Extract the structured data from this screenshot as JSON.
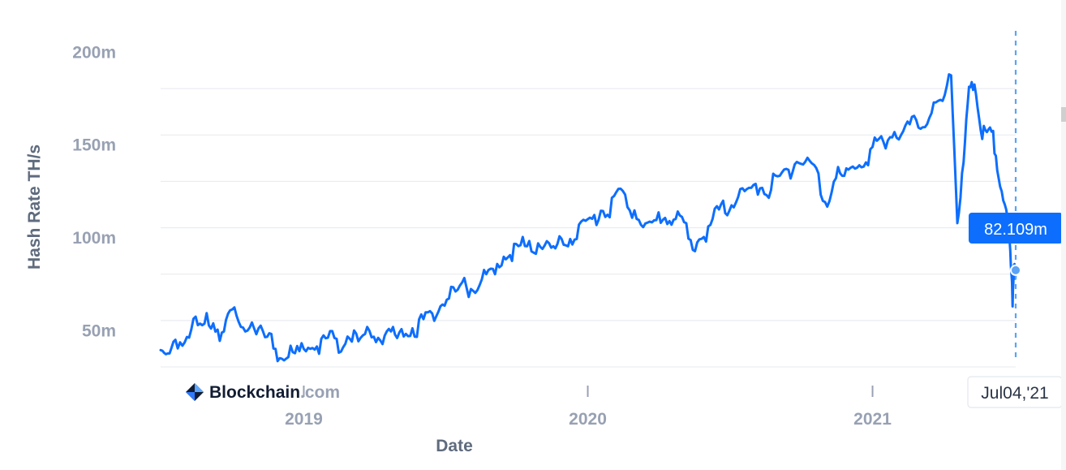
{
  "chart_data": {
    "type": "line",
    "xlabel": "Date",
    "ylabel": "Hash Rate TH/s",
    "yticks": [
      {
        "value": 200,
        "label": "200m"
      },
      {
        "value": 150,
        "label": "150m"
      },
      {
        "value": 100,
        "label": "100m"
      },
      {
        "value": 50,
        "label": "50m"
      }
    ],
    "xticks": [
      {
        "date": "2019-01-01",
        "label": "2019"
      },
      {
        "date": "2020-01-01",
        "label": "2020"
      },
      {
        "date": "2021-01-01",
        "label": "2021"
      }
    ],
    "ylim": [
      30,
      205
    ],
    "xlim": [
      "2018-07-01",
      "2021-07-04"
    ],
    "series": [
      {
        "color": "#0d6efd",
        "points": [
          [
            "2018-07-01",
            40
          ],
          [
            "2018-07-10",
            34
          ],
          [
            "2018-07-20",
            41
          ],
          [
            "2018-08-01",
            48
          ],
          [
            "2018-08-15",
            52
          ],
          [
            "2018-09-01",
            55
          ],
          [
            "2018-09-15",
            50
          ],
          [
            "2018-10-01",
            57
          ],
          [
            "2018-10-15",
            54
          ],
          [
            "2018-11-01",
            52
          ],
          [
            "2018-11-15",
            45
          ],
          [
            "2018-12-01",
            38
          ],
          [
            "2018-12-15",
            36
          ],
          [
            "2019-01-01",
            40
          ],
          [
            "2019-01-15",
            42
          ],
          [
            "2019-02-01",
            44
          ],
          [
            "2019-02-15",
            43
          ],
          [
            "2019-03-01",
            46
          ],
          [
            "2019-03-15",
            45
          ],
          [
            "2019-04-01",
            48
          ],
          [
            "2019-04-15",
            47
          ],
          [
            "2019-05-01",
            47
          ],
          [
            "2019-05-15",
            50
          ],
          [
            "2019-06-01",
            54
          ],
          [
            "2019-06-15",
            58
          ],
          [
            "2019-07-01",
            66
          ],
          [
            "2019-07-15",
            70
          ],
          [
            "2019-08-01",
            72
          ],
          [
            "2019-08-15",
            76
          ],
          [
            "2019-09-01",
            80
          ],
          [
            "2019-09-15",
            88
          ],
          [
            "2019-10-01",
            95
          ],
          [
            "2019-10-15",
            93
          ],
          [
            "2019-11-01",
            98
          ],
          [
            "2019-11-15",
            92
          ],
          [
            "2019-12-01",
            97
          ],
          [
            "2019-12-15",
            103
          ],
          [
            "2020-01-01",
            108
          ],
          [
            "2020-01-15",
            112
          ],
          [
            "2020-02-01",
            118
          ],
          [
            "2020-02-15",
            121
          ],
          [
            "2020-03-01",
            116
          ],
          [
            "2020-03-15",
            106
          ],
          [
            "2020-04-01",
            108
          ],
          [
            "2020-04-15",
            113
          ],
          [
            "2020-05-01",
            109
          ],
          [
            "2020-05-15",
            95
          ],
          [
            "2020-06-01",
            101
          ],
          [
            "2020-06-15",
            112
          ],
          [
            "2020-07-01",
            118
          ],
          [
            "2020-07-15",
            122
          ],
          [
            "2020-08-01",
            124
          ],
          [
            "2020-08-15",
            127
          ],
          [
            "2020-09-01",
            130
          ],
          [
            "2020-09-15",
            136
          ],
          [
            "2020-10-01",
            142
          ],
          [
            "2020-10-15",
            139
          ],
          [
            "2020-11-01",
            121
          ],
          [
            "2020-11-15",
            131
          ],
          [
            "2020-12-01",
            136
          ],
          [
            "2020-12-15",
            139
          ],
          [
            "2021-01-01",
            147
          ],
          [
            "2021-01-15",
            152
          ],
          [
            "2021-02-01",
            156
          ],
          [
            "2021-02-15",
            160
          ],
          [
            "2021-03-01",
            161
          ],
          [
            "2021-03-15",
            165
          ],
          [
            "2021-04-01",
            174
          ],
          [
            "2021-04-12",
            187
          ],
          [
            "2021-04-20",
            113
          ],
          [
            "2021-04-28",
            139
          ],
          [
            "2021-05-05",
            180
          ],
          [
            "2021-05-12",
            184
          ],
          [
            "2021-05-20",
            158
          ],
          [
            "2021-05-28",
            155
          ],
          [
            "2021-06-05",
            153
          ],
          [
            "2021-06-12",
            137
          ],
          [
            "2021-06-20",
            118
          ],
          [
            "2021-06-27",
            93
          ],
          [
            "2021-06-30",
            66
          ],
          [
            "2021-07-02",
            90
          ],
          [
            "2021-07-04",
            82.109
          ]
        ]
      }
    ],
    "tooltip": {
      "value_label": "82.109m",
      "value": 82.109,
      "date_label": "Jul04,'21",
      "date": "2021-07-04"
    }
  },
  "brand": {
    "main": "Blockchain",
    "suffix": ".com"
  }
}
